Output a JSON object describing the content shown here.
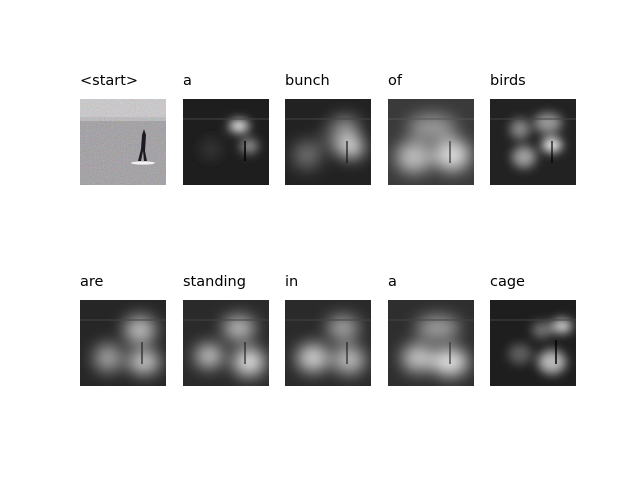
{
  "panels": [
    {
      "word": "<start>",
      "image": "original-photo"
    },
    {
      "word": "a",
      "image": "attention-map"
    },
    {
      "word": "bunch",
      "image": "attention-map"
    },
    {
      "word": "of",
      "image": "attention-map"
    },
    {
      "word": "birds",
      "image": "attention-map"
    },
    {
      "word": "are",
      "image": "attention-map"
    },
    {
      "word": "standing",
      "image": "attention-map"
    },
    {
      "word": "in",
      "image": "attention-map"
    },
    {
      "word": "a",
      "image": "attention-map"
    },
    {
      "word": "cage",
      "image": "attention-map"
    }
  ]
}
